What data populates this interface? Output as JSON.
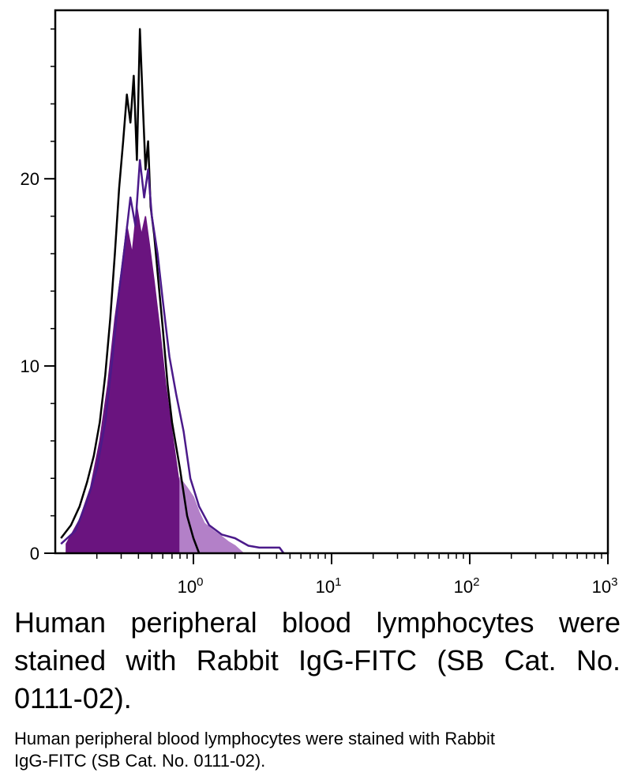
{
  "chart_data": {
    "type": "area",
    "x_scale": "log",
    "xlim": [
      0.1,
      1000
    ],
    "ylim": [
      0,
      29
    ],
    "grid": false,
    "x_tick_labels": [
      {
        "value": 1,
        "base": "10",
        "exp": "0"
      },
      {
        "value": 10,
        "base": "10",
        "exp": "1"
      },
      {
        "value": 100,
        "base": "10",
        "exp": "2"
      },
      {
        "value": 1000,
        "base": "10",
        "exp": "3"
      }
    ],
    "y_ticks": [
      0,
      10,
      20
    ],
    "colors": {
      "outline_black": "#000000",
      "outline_purple": "#4b1a8a",
      "fill_purple": "#6a147f",
      "fill_light": "#b380c8"
    },
    "series": [
      {
        "style": "line",
        "color": "#000000",
        "x": [
          0.11,
          0.13,
          0.15,
          0.17,
          0.19,
          0.21,
          0.23,
          0.25,
          0.27,
          0.29,
          0.31,
          0.33,
          0.35,
          0.37,
          0.39,
          0.41,
          0.43,
          0.45,
          0.47,
          0.49,
          0.52,
          0.55,
          0.6,
          0.65,
          0.7,
          0.8,
          0.9,
          1.0,
          1.1
        ],
        "y": [
          0.8,
          1.5,
          2.5,
          3.8,
          5.2,
          7.0,
          9.5,
          12.5,
          16.0,
          19.5,
          22.0,
          24.5,
          23.0,
          25.5,
          21.0,
          28.0,
          24.0,
          20.5,
          22.0,
          18.5,
          17.0,
          15.0,
          12.0,
          9.0,
          7.0,
          4.5,
          2.0,
          0.8,
          0.0
        ]
      },
      {
        "style": "line",
        "color": "#4b1a8a",
        "x": [
          0.11,
          0.14,
          0.17,
          0.2,
          0.23,
          0.26,
          0.29,
          0.32,
          0.35,
          0.38,
          0.41,
          0.44,
          0.47,
          0.5,
          0.55,
          0.6,
          0.67,
          0.75,
          0.85,
          0.95,
          1.1,
          1.3,
          1.6,
          2.0,
          2.5,
          3.0,
          3.5,
          4.2,
          4.5
        ],
        "y": [
          0.5,
          1.2,
          2.8,
          4.5,
          7.0,
          10.5,
          14.0,
          16.5,
          19.0,
          17.5,
          21.0,
          19.0,
          20.5,
          18.0,
          16.0,
          13.5,
          10.5,
          8.5,
          6.5,
          4.0,
          2.5,
          1.5,
          1.0,
          0.8,
          0.4,
          0.3,
          0.3,
          0.3,
          0.0
        ]
      },
      {
        "style": "fill",
        "color": "#6a147f",
        "x": [
          0.12,
          0.15,
          0.18,
          0.21,
          0.24,
          0.27,
          0.3,
          0.33,
          0.36,
          0.39,
          0.42,
          0.45,
          0.48,
          0.52,
          0.57,
          0.63,
          0.7,
          0.78,
          0.88,
          1.0,
          1.15
        ],
        "y": [
          0.5,
          1.8,
          3.5,
          6.0,
          9.0,
          12.5,
          15.0,
          17.5,
          16.0,
          18.5,
          17.0,
          18.0,
          16.5,
          14.5,
          12.0,
          9.0,
          6.5,
          4.0,
          2.0,
          0.8,
          0.0
        ]
      },
      {
        "style": "fill",
        "color": "#b380c8",
        "x": [
          0.8,
          0.9,
          1.0,
          1.1,
          1.2,
          1.4,
          1.6,
          1.8,
          2.0,
          2.3
        ],
        "y": [
          4.0,
          3.5,
          3.0,
          2.2,
          1.6,
          1.2,
          0.9,
          0.6,
          0.4,
          0.0
        ]
      }
    ]
  },
  "captions": {
    "large": "Human peripheral blood lymphocytes were stained with Rabbit IgG-FITC (SB Cat. No. 0111-02).",
    "small": "Human peripheral blood lymphocytes were stained with Rabbit IgG-FITC (SB Cat. No. 0111-02)."
  }
}
